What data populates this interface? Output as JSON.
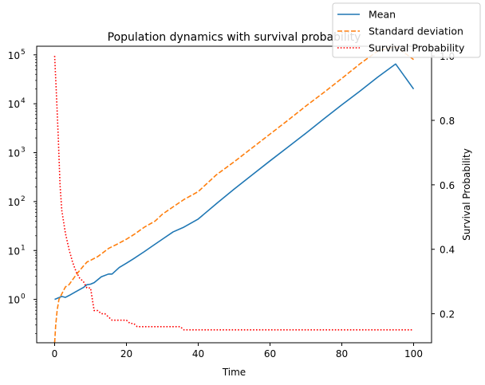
{
  "chart_data": {
    "type": "line",
    "title": "Population dynamics with survival probability",
    "xlabel": "Time",
    "ylabel": "",
    "ylabel_right": "Survival Probability",
    "xlim": [
      -5,
      105
    ],
    "ylim_left": [
      0.13,
      150000
    ],
    "yscale_left": "log",
    "ylim_right": [
      0.11,
      1.03
    ],
    "x_ticks": [
      0,
      20,
      40,
      60,
      80,
      100
    ],
    "x_tick_labels": [
      "0",
      "20",
      "40",
      "60",
      "80",
      "100"
    ],
    "y_left_ticks": [
      1,
      10,
      100,
      1000,
      10000,
      100000
    ],
    "y_left_tick_labels": {
      "base": [
        "10",
        "10",
        "10",
        "10",
        "10",
        "10"
      ],
      "exp": [
        "0",
        "1",
        "2",
        "3",
        "4",
        "5"
      ]
    },
    "y_right_ticks": [
      0.2,
      0.4,
      0.6,
      0.8,
      1.0
    ],
    "y_right_tick_labels": [
      "0.2",
      "0.4",
      "0.6",
      "0.8",
      "1.0"
    ],
    "grid": false,
    "legend_position": "top-right",
    "series": [
      {
        "name": "Mean",
        "axis": "left",
        "color": "#1f77b4",
        "dash": "solid",
        "x": [
          0,
          2,
          3,
          4,
          6,
          8,
          9,
          10,
          11,
          13,
          15,
          16,
          18,
          20,
          22,
          25,
          27,
          30,
          33,
          36,
          40,
          45,
          50,
          55,
          60,
          65,
          70,
          75,
          80,
          85,
          90,
          95,
          100
        ],
        "y": [
          1.0,
          1.15,
          1.1,
          1.2,
          1.45,
          1.75,
          2.0,
          2.05,
          2.2,
          2.9,
          3.3,
          3.3,
          4.5,
          5.5,
          6.8,
          9.5,
          12,
          17,
          24,
          30,
          44,
          90,
          180,
          350,
          680,
          1300,
          2500,
          4900,
          9500,
          18000,
          35000,
          65000,
          20000
        ]
      },
      {
        "name": "Standard deviation",
        "axis": "left",
        "color": "#ff7f0e",
        "dash": "dashed",
        "x": [
          0,
          0.3,
          0.7,
          1.2,
          2,
          3,
          4,
          6,
          8,
          9,
          10,
          12,
          13,
          15,
          17,
          20,
          22,
          25,
          28,
          30,
          33,
          36,
          40,
          45,
          50,
          55,
          60,
          65,
          70,
          75,
          80,
          85,
          90,
          95,
          100
        ],
        "y": [
          0.13,
          0.3,
          0.6,
          1.0,
          1.3,
          1.8,
          2.0,
          3.2,
          4.8,
          5.8,
          6.3,
          7.5,
          8.5,
          11,
          13,
          17,
          21,
          30,
          40,
          55,
          78,
          110,
          160,
          350,
          650,
          1250,
          2400,
          4600,
          9000,
          17000,
          33000,
          65000,
          120000,
          230000,
          80000
        ]
      },
      {
        "name": "Survival Probability",
        "axis": "right",
        "color": "#ff0000",
        "dash": "dotted",
        "x": [
          0,
          0.5,
          1,
          1.5,
          2,
          3,
          4,
          5,
          6,
          7,
          8,
          9,
          10,
          11,
          12,
          13,
          14,
          15,
          16,
          18,
          19,
          20,
          21,
          22,
          23,
          24,
          25,
          30,
          35,
          36,
          40,
          50,
          60,
          70,
          80,
          90,
          100
        ],
        "y": [
          1.0,
          0.88,
          0.75,
          0.6,
          0.52,
          0.45,
          0.4,
          0.36,
          0.33,
          0.31,
          0.3,
          0.28,
          0.28,
          0.21,
          0.21,
          0.2,
          0.2,
          0.19,
          0.18,
          0.18,
          0.18,
          0.18,
          0.17,
          0.17,
          0.16,
          0.16,
          0.16,
          0.16,
          0.16,
          0.15,
          0.15,
          0.15,
          0.15,
          0.15,
          0.15,
          0.15,
          0.15
        ]
      }
    ]
  }
}
